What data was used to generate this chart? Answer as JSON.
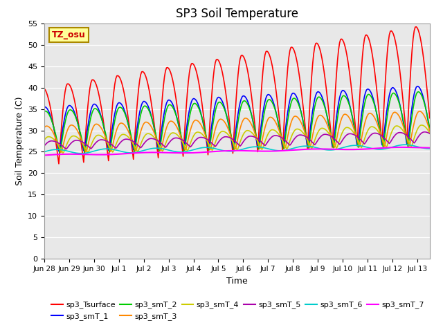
{
  "title": "SP3 Soil Temperature",
  "xlabel": "Time",
  "ylabel": "Soil Temperature (C)",
  "ylim": [
    0,
    55
  ],
  "yticks": [
    0,
    5,
    10,
    15,
    20,
    25,
    30,
    35,
    40,
    45,
    50,
    55
  ],
  "x_labels": [
    "Jun 28",
    "Jun 29",
    "Jun 30",
    "Jul 1",
    "Jul 2",
    "Jul 3",
    "Jul 4",
    "Jul 5",
    "Jul 6",
    "Jul 7",
    "Jul 8",
    "Jul 9",
    "Jul 10",
    "Jul 11",
    "Jul 12",
    "Jul 13"
  ],
  "colors": {
    "sp3_Tsurface": "#FF0000",
    "sp3_smT_1": "#0000FF",
    "sp3_smT_2": "#00CC00",
    "sp3_smT_3": "#FF8800",
    "sp3_smT_4": "#CCCC00",
    "sp3_smT_5": "#AA00AA",
    "sp3_smT_6": "#00CCCC",
    "sp3_smT_7": "#FF00FF"
  },
  "annotation": "TZ_osu",
  "annotation_color": "#CC0000",
  "annotation_bg": "#FFFF99",
  "annotation_border": "#AA8800",
  "background_color": "#E8E8E8",
  "title_fontsize": 12,
  "legend_fontsize": 8,
  "axis_fontsize": 9,
  "linewidth": 1.2
}
